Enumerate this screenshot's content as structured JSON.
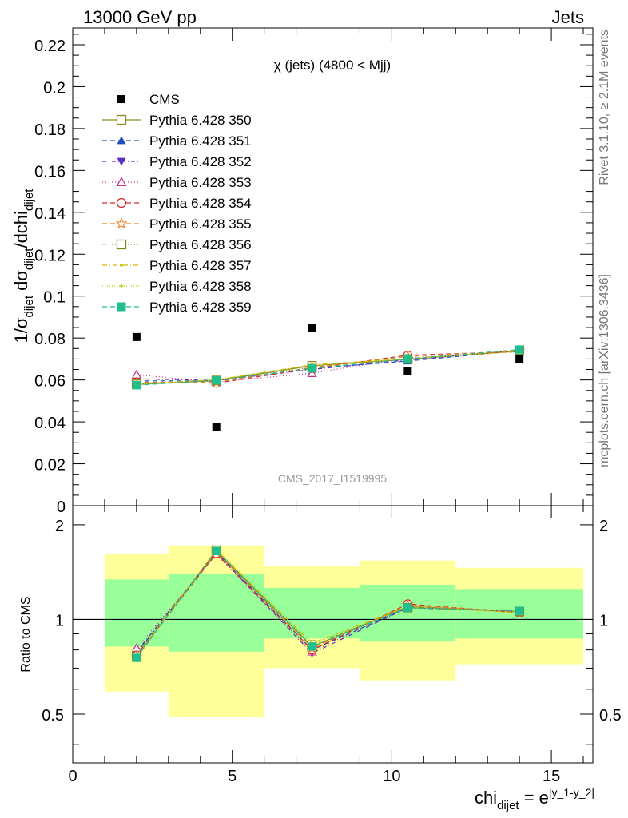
{
  "header": {
    "left": "13000 GeV pp",
    "right": "Jets"
  },
  "side_labels": {
    "rivet": "Rivet 3.1.10, ≥ 2.1M events",
    "mcplots": "mcplots.cern.ch [arXiv:1306.3436]"
  },
  "chart_data": [
    {
      "type": "scatter",
      "panel": "main",
      "title": "χ (jets) (4800 < Mjj)",
      "watermark": "CMS_2017_I1519995",
      "ylabel": "1/σ_dijet dσ_dijet/dchi_dijet",
      "ylim": [
        0,
        0.228
      ],
      "xlim": [
        0,
        16.3
      ],
      "yticks": [
        "0",
        "0.02",
        "0.04",
        "0.06",
        "0.08",
        "0.1",
        "0.12",
        "0.14",
        "0.16",
        "0.18",
        "0.2",
        "0.22"
      ],
      "legend_position": "top-left",
      "x": [
        2,
        4.5,
        7.5,
        10.5,
        14
      ],
      "data": {
        "name": "CMS",
        "values": [
          0.0805,
          0.0375,
          0.0848,
          0.0642,
          0.0701
        ],
        "color": "#000000"
      },
      "series": [
        {
          "name": "Pythia 6.428 350",
          "color": "#8b8b1e",
          "marker": "open-square",
          "dash": "",
          "values": [
            0.0578,
            0.0597,
            0.0668,
            0.0698,
            0.0738
          ]
        },
        {
          "name": "Pythia 6.428 351",
          "color": "#1f4fbf",
          "marker": "filled-triangle-up",
          "dash": "6,4",
          "values": [
            0.0595,
            0.0595,
            0.0655,
            0.069,
            0.074
          ]
        },
        {
          "name": "Pythia 6.428 352",
          "color": "#5a2dbf",
          "marker": "filled-triangle-down",
          "dash": "5,3,1,3",
          "values": [
            0.0605,
            0.0598,
            0.065,
            0.0695,
            0.0742
          ]
        },
        {
          "name": "Pythia 6.428 353",
          "color": "#c0308f",
          "marker": "open-triangle-up",
          "dash": "1,3",
          "values": [
            0.0625,
            0.059,
            0.0632,
            0.0705,
            0.0738
          ]
        },
        {
          "name": "Pythia 6.428 354",
          "color": "#d62728",
          "marker": "open-circle",
          "dash": "6,4",
          "values": [
            0.059,
            0.0585,
            0.0655,
            0.0718,
            0.0735
          ]
        },
        {
          "name": "Pythia 6.428 355",
          "color": "#f07f1e",
          "marker": "open-star",
          "dash": "6,4",
          "values": [
            0.0588,
            0.059,
            0.066,
            0.0712,
            0.074
          ]
        },
        {
          "name": "Pythia 6.428 356",
          "color": "#7a8b1e",
          "marker": "open-square",
          "dash": "1,3",
          "values": [
            0.058,
            0.0598,
            0.066,
            0.07,
            0.0742
          ]
        },
        {
          "name": "Pythia 6.428 357",
          "color": "#d4b80a",
          "marker": "small-dot",
          "dash": "6,3,1,3",
          "values": [
            0.0582,
            0.06,
            0.0672,
            0.0702,
            0.0735
          ]
        },
        {
          "name": "Pythia 6.428 358",
          "color": "#b8d40a",
          "marker": "small-dot",
          "dash": "1,2",
          "values": [
            0.058,
            0.0602,
            0.067,
            0.07,
            0.074
          ]
        },
        {
          "name": "Pythia 6.428 359",
          "color": "#1fbf8f",
          "marker": "filled-square",
          "dash": "6,4",
          "values": [
            0.0575,
            0.0598,
            0.0655,
            0.07,
            0.0745
          ]
        }
      ]
    },
    {
      "type": "line",
      "panel": "ratio",
      "ylabel": "Ratio to CMS",
      "xlabel": "chi_dijet = e^|y_1-y_2|",
      "ylim": [
        0.35,
        2.3
      ],
      "yscale": "log",
      "yticks": [
        "0.5",
        "1",
        "2"
      ],
      "xlim": [
        0,
        16.3
      ],
      "xticks": [
        "0",
        "5",
        "10",
        "15"
      ],
      "reference_line": 1,
      "bands": [
        {
          "x_range": [
            1,
            3
          ],
          "inner": [
            0.82,
            1.34
          ],
          "outer": [
            0.59,
            1.62
          ]
        },
        {
          "x_range": [
            3,
            6
          ],
          "inner": [
            0.79,
            1.4
          ],
          "outer": [
            0.49,
            1.72
          ]
        },
        {
          "x_range": [
            6,
            9
          ],
          "inner": [
            0.87,
            1.26
          ],
          "outer": [
            0.7,
            1.48
          ]
        },
        {
          "x_range": [
            9,
            12
          ],
          "inner": [
            0.85,
            1.29
          ],
          "outer": [
            0.64,
            1.54
          ]
        },
        {
          "x_range": [
            12,
            16
          ],
          "inner": [
            0.87,
            1.25
          ],
          "outer": [
            0.72,
            1.46
          ]
        }
      ],
      "band_colors": {
        "inner": "#99ff99",
        "outer": "#ffff99"
      },
      "x": [
        2,
        4.5,
        7.5,
        10.5,
        14
      ],
      "series": [
        {
          "name": "Pythia 6.428 350",
          "values": [
            0.76,
            1.66,
            0.82,
            1.1,
            1.06
          ]
        },
        {
          "name": "Pythia 6.428 351",
          "values": [
            0.78,
            1.64,
            0.8,
            1.09,
            1.06
          ]
        },
        {
          "name": "Pythia 6.428 352",
          "values": [
            0.79,
            1.63,
            0.78,
            1.09,
            1.06
          ]
        },
        {
          "name": "Pythia 6.428 353",
          "values": [
            0.81,
            1.61,
            0.79,
            1.1,
            1.055
          ]
        },
        {
          "name": "Pythia 6.428 354",
          "values": [
            0.77,
            1.62,
            0.8,
            1.12,
            1.05
          ]
        },
        {
          "name": "Pythia 6.428 355",
          "values": [
            0.76,
            1.64,
            0.81,
            1.11,
            1.06
          ]
        },
        {
          "name": "Pythia 6.428 356",
          "values": [
            0.76,
            1.66,
            0.83,
            1.09,
            1.06
          ]
        },
        {
          "name": "Pythia 6.428 357",
          "values": [
            0.77,
            1.66,
            0.84,
            1.1,
            1.05
          ]
        },
        {
          "name": "Pythia 6.428 358",
          "values": [
            0.76,
            1.67,
            0.84,
            1.09,
            1.06
          ]
        },
        {
          "name": "Pythia 6.428 359",
          "values": [
            0.755,
            1.65,
            0.82,
            1.09,
            1.065
          ]
        }
      ]
    }
  ]
}
